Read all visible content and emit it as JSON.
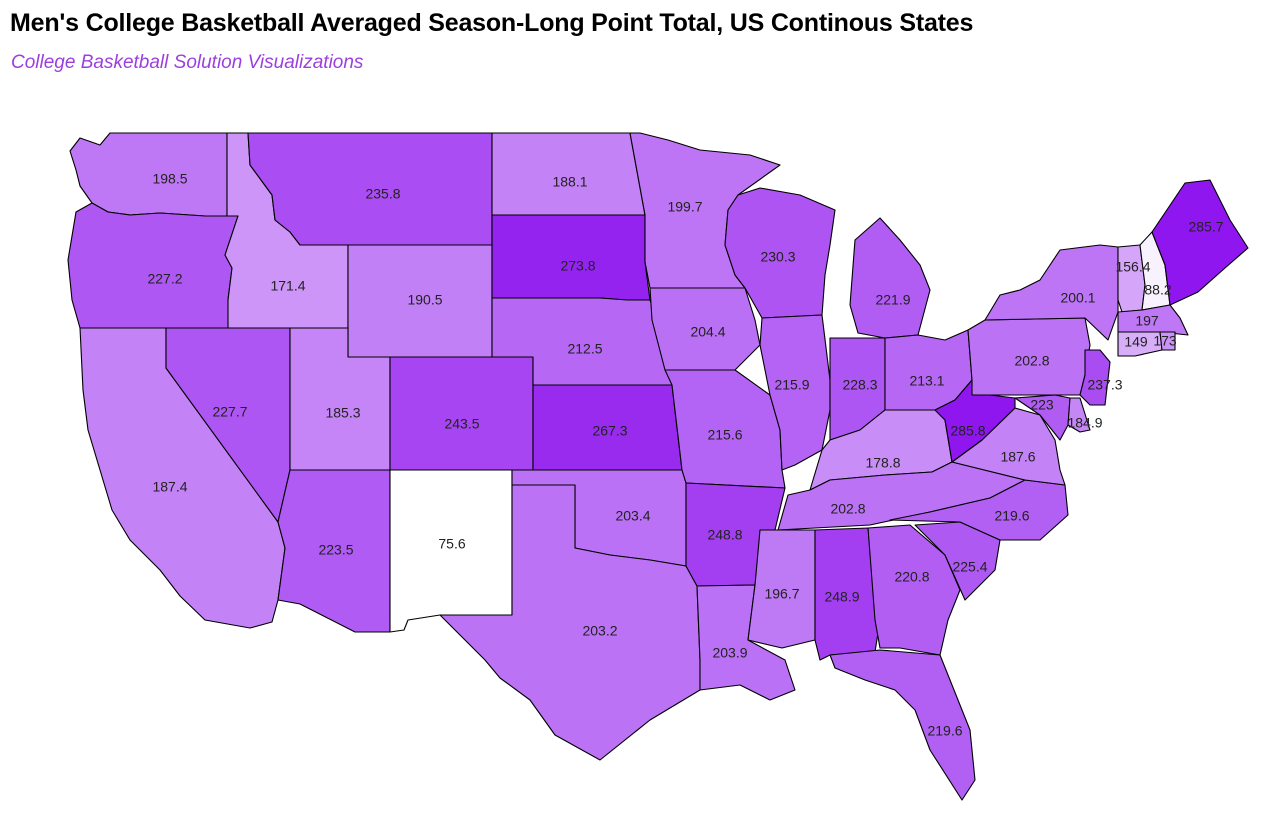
{
  "title": "Men's College Basketball Averaged Season-Long Point Total, US Continous States",
  "subtitle": "College Basketball Solution Visualizations",
  "chart_data": {
    "type": "choropleth",
    "region": "US contiguous states",
    "value_range": [
      75.6,
      285.8
    ],
    "color_low": "#ffffff",
    "color_high": "#8f16ee",
    "values": {
      "WA": 198.5,
      "OR": 227.2,
      "CA": 187.4,
      "ID": 171.4,
      "NV": 227.7,
      "MT": 235.8,
      "WY": 190.5,
      "UT": 185.3,
      "AZ": 223.5,
      "CO": 243.5,
      "NM": 75.6,
      "ND": 188.1,
      "SD": 273.8,
      "NE": 212.5,
      "KS": 267.3,
      "OK": 203.4,
      "TX": 203.2,
      "MN": 199.7,
      "IA": 204.4,
      "MO": 215.6,
      "AR": 248.8,
      "LA": 203.9,
      "WI": 230.3,
      "IL": 215.9,
      "MI": 221.9,
      "IN": 228.3,
      "OH": 213.1,
      "KY": 178.8,
      "TN": 202.8,
      "MS": 196.7,
      "AL": 248.9,
      "GA": 220.8,
      "FL": 219.6,
      "SC": 225.4,
      "NC": 219.6,
      "VA": 187.6,
      "WV": 285.8,
      "PA": 202.8,
      "NY": 200.1,
      "MD": 223,
      "DE": 184.9,
      "NJ": 237.3,
      "VT": 156.4,
      "NH": 88.2,
      "ME": 285.7,
      "MA": 197,
      "CT": 149,
      "RI": 173
    },
    "labels": {
      "WA": "198.5",
      "OR": "227.2",
      "CA": "187.4",
      "ID": "171.4",
      "NV": "227.7",
      "MT": "235.8",
      "WY": "190.5",
      "UT": "185.3",
      "AZ": "223.5",
      "CO": "243.5",
      "NM": "75.6",
      "ND": "188.1",
      "SD": "273.8",
      "NE": "212.5",
      "KS": "267.3",
      "OK": "203.4",
      "TX": "203.2",
      "MN": "199.7",
      "IA": "204.4",
      "MO": "215.6",
      "AR": "248.8",
      "LA": "203.9",
      "WI": "230.3",
      "IL": "215.9",
      "MI": "221.9",
      "IN": "228.3",
      "OH": "213.1",
      "KY": "178.8",
      "TN": "202.8",
      "MS": "196.7",
      "AL": "248.9",
      "GA": "220.8",
      "FL": "219.6",
      "SC": "225.4",
      "NC": "219.6",
      "VA": "187.6",
      "WV": "285.8",
      "PA": "202.8",
      "NY": "200.1",
      "MD": "223",
      "DE": "184.9",
      "NJ": "237.3",
      "VT": "156.4",
      "NH": "88.2",
      "ME": "285.7",
      "MA": "197",
      "CT": "149",
      "RI": "173"
    }
  }
}
